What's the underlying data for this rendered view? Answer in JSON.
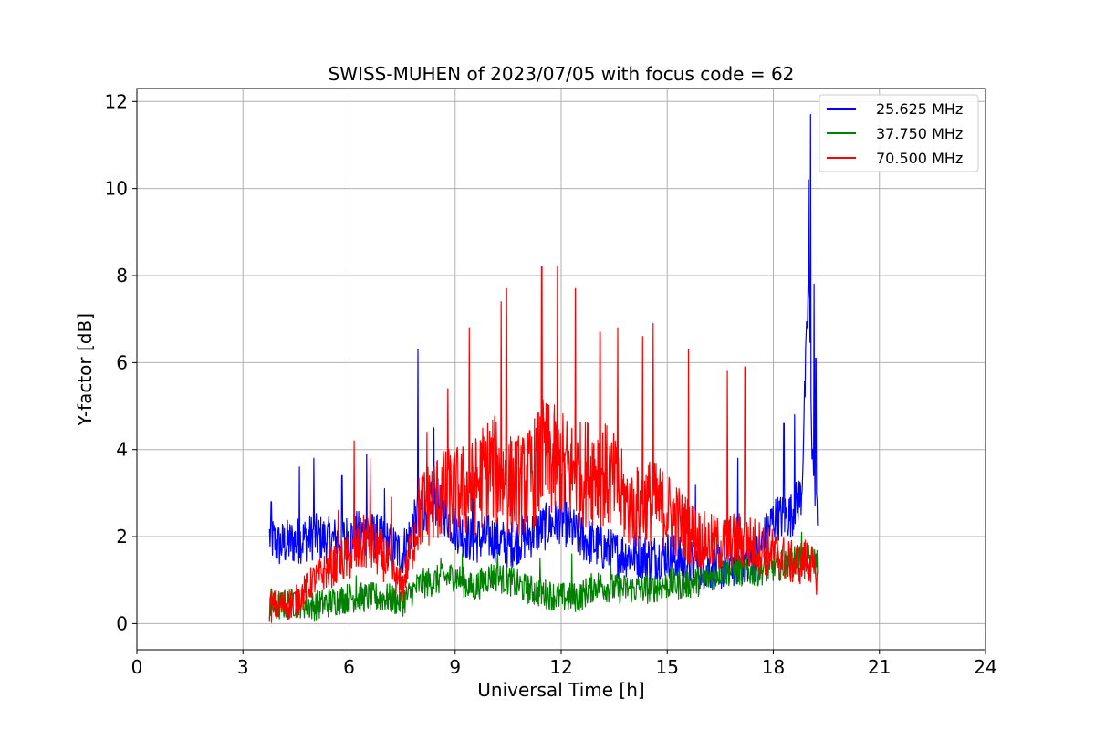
{
  "chart_data": {
    "type": "line",
    "title": "SWISS-MUHEN of 2023/07/05 with focus code = 62",
    "xlabel": "Universal Time [h]",
    "ylabel": "Y-factor [dB]",
    "xlim": [
      0,
      24
    ],
    "ylim": [
      -0.6,
      12.3
    ],
    "xticks": [
      0,
      3,
      6,
      9,
      12,
      15,
      18,
      21,
      24
    ],
    "yticks": [
      0,
      2,
      4,
      6,
      8,
      10,
      12
    ],
    "xtick_labels": [
      "0",
      "3",
      "6",
      "9",
      "12",
      "15",
      "18",
      "21",
      "24"
    ],
    "ytick_labels": [
      "0",
      "2",
      "4",
      "6",
      "8",
      "10",
      "12"
    ],
    "grid": true,
    "legend_position": "top-right",
    "series": [
      {
        "name": "25.625 MHz",
        "color": "#0000ff",
        "x": [
          3.75,
          4.0,
          4.5,
          5.0,
          5.5,
          6.0,
          6.5,
          7.0,
          7.5,
          8.0,
          8.5,
          9.0,
          9.5,
          10.0,
          10.5,
          11.0,
          11.5,
          12.0,
          12.5,
          13.0,
          13.5,
          14.0,
          14.5,
          15.0,
          15.5,
          16.0,
          16.5,
          17.0,
          17.5,
          18.0,
          18.5,
          18.8,
          19.0,
          19.1,
          19.2,
          19.25
        ],
        "y": [
          2.0,
          1.8,
          1.9,
          2.0,
          1.9,
          2.0,
          2.1,
          1.9,
          1.6,
          2.6,
          2.8,
          2.2,
          1.9,
          2.0,
          1.8,
          2.0,
          2.2,
          2.4,
          2.0,
          1.8,
          1.6,
          1.6,
          1.5,
          1.6,
          1.4,
          1.3,
          1.3,
          1.4,
          1.5,
          2.4,
          2.5,
          3.0,
          8.0,
          4.0,
          3.0,
          2.2
        ],
        "spikes": [
          [
            3.8,
            2.8
          ],
          [
            4.6,
            3.6
          ],
          [
            5.0,
            3.8
          ],
          [
            5.8,
            3.4
          ],
          [
            6.5,
            3.9
          ],
          [
            7.0,
            3.1
          ],
          [
            7.95,
            6.3
          ],
          [
            8.4,
            4.5
          ],
          [
            9.5,
            3.6
          ],
          [
            12.1,
            3.7
          ],
          [
            15.8,
            3.2
          ],
          [
            17.0,
            3.8
          ],
          [
            18.3,
            4.6
          ],
          [
            18.6,
            4.8
          ],
          [
            19.0,
            10.2
          ],
          [
            19.05,
            11.7
          ],
          [
            19.15,
            7.8
          ],
          [
            19.2,
            6.1
          ]
        ]
      },
      {
        "name": "37.750 MHz",
        "color": "#008000",
        "x": [
          3.75,
          4.0,
          4.5,
          5.0,
          5.5,
          6.0,
          6.5,
          7.0,
          7.5,
          8.0,
          8.5,
          9.0,
          9.5,
          10.0,
          10.5,
          11.0,
          11.5,
          12.0,
          12.5,
          13.0,
          13.5,
          14.0,
          14.5,
          15.0,
          15.5,
          16.0,
          16.5,
          17.0,
          17.5,
          18.0,
          18.5,
          18.8,
          19.0,
          19.25
        ],
        "y": [
          0.4,
          0.4,
          0.5,
          0.4,
          0.5,
          0.6,
          0.6,
          0.6,
          0.5,
          0.9,
          1.0,
          1.1,
          0.8,
          1.1,
          1.0,
          0.8,
          0.7,
          0.6,
          0.6,
          0.9,
          0.8,
          0.8,
          0.8,
          0.9,
          0.9,
          1.0,
          1.2,
          1.2,
          1.2,
          1.3,
          1.4,
          1.5,
          1.5,
          1.4
        ],
        "spikes": [
          [
            3.8,
            0.8
          ],
          [
            6.2,
            1.1
          ],
          [
            8.6,
            1.5
          ],
          [
            9.2,
            1.6
          ],
          [
            10.2,
            1.7
          ],
          [
            11.4,
            1.5
          ],
          [
            12.3,
            1.6
          ],
          [
            13.4,
            1.4
          ],
          [
            17.5,
            1.7
          ],
          [
            18.8,
            2.1
          ]
        ]
      },
      {
        "name": "70.500 MHz",
        "color": "#ff0000",
        "x": [
          3.75,
          4.0,
          4.5,
          5.0,
          5.5,
          6.0,
          6.5,
          7.0,
          7.5,
          8.0,
          8.5,
          9.0,
          9.5,
          10.0,
          10.5,
          11.0,
          11.5,
          12.0,
          12.5,
          13.0,
          13.5,
          14.0,
          14.5,
          15.0,
          15.5,
          16.0,
          16.5,
          17.0,
          17.5,
          18.0,
          18.5,
          18.8,
          19.0,
          19.25
        ],
        "y": [
          0.4,
          0.4,
          0.5,
          1.0,
          1.3,
          1.5,
          1.9,
          1.5,
          0.8,
          2.6,
          2.9,
          3.0,
          3.1,
          3.6,
          3.2,
          3.2,
          3.8,
          3.6,
          3.4,
          3.6,
          3.2,
          2.6,
          2.8,
          2.6,
          2.2,
          1.9,
          1.8,
          1.9,
          1.8,
          1.6,
          1.4,
          1.4,
          1.5,
          1.0
        ],
        "spikes": [
          [
            5.7,
            2.6
          ],
          [
            6.15,
            4.2
          ],
          [
            6.6,
            3.8
          ],
          [
            7.2,
            2.9
          ],
          [
            8.2,
            4.4
          ],
          [
            8.8,
            5.4
          ],
          [
            9.4,
            6.8
          ],
          [
            10.3,
            7.4
          ],
          [
            10.45,
            7.7
          ],
          [
            11.45,
            8.2
          ],
          [
            11.9,
            8.2
          ],
          [
            12.4,
            7.7
          ],
          [
            13.1,
            6.7
          ],
          [
            13.6,
            6.8
          ],
          [
            14.3,
            6.6
          ],
          [
            14.6,
            6.9
          ],
          [
            15.6,
            6.3
          ],
          [
            16.7,
            5.8
          ],
          [
            17.2,
            5.9
          ]
        ]
      }
    ]
  }
}
